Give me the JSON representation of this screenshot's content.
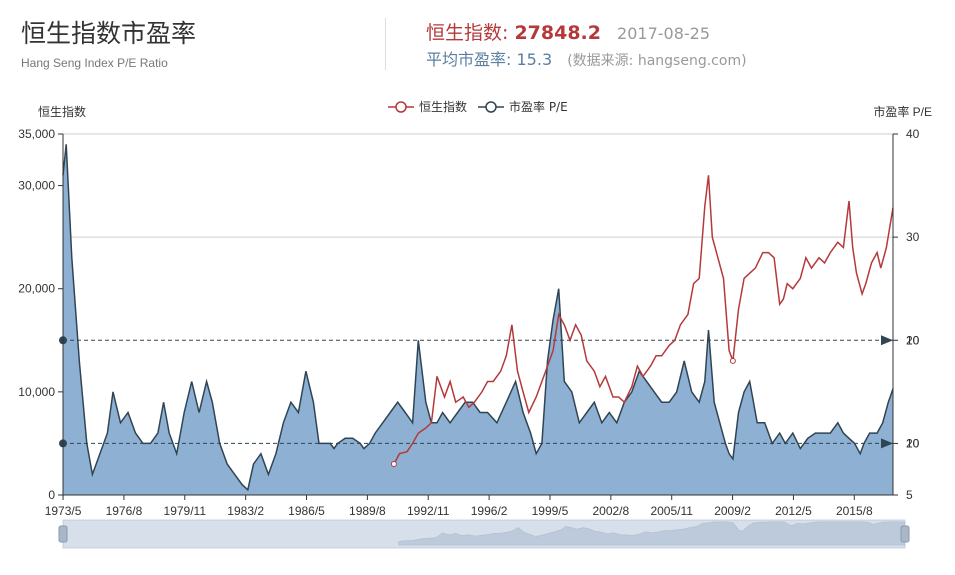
{
  "header": {
    "title": "恒生指数市盈率",
    "subtitle": "Hang Seng Index P/E Ratio",
    "index_label": "恒生指数:",
    "index_value": "27848.2",
    "date": "2017-08-25",
    "pe_label": "平均市盈率:",
    "pe_value": "15.3",
    "source": "(数据来源: hangseng.com)"
  },
  "colors": {
    "index": "#b5393b",
    "pe": "#2f4554",
    "pe_fill": "#8eb0d3"
  },
  "chart_data": {
    "type": "line",
    "left_axis": {
      "label": "恒生指数",
      "ticks": [
        "0",
        "10,000",
        "20,000",
        "30,000",
        "35,000"
      ],
      "ylim": [
        0,
        35000
      ]
    },
    "right_axis": {
      "label": "市盈率 P/E",
      "ticks": [
        "5",
        "10",
        "20",
        "30",
        "40"
      ],
      "ylim": [
        5,
        40
      ]
    },
    "x_ticks": [
      "1973/5",
      "1976/8",
      "1979/11",
      "1983/2",
      "1986/5",
      "1989/8",
      "1992/11",
      "1996/2",
      "1999/5",
      "2002/8",
      "2005/11",
      "2009/2",
      "2012/5",
      "2015/8"
    ],
    "xlim": [
      1973.33,
      2017.65
    ],
    "legend": [
      "恒生指数",
      "市盈率 P/E"
    ],
    "markers": [
      "20",
      "10"
    ],
    "reference_lines_pe": [
      10,
      20
    ],
    "series": [
      {
        "name": "恒生指数",
        "x": [
          1991.0,
          1991.3,
          1991.7,
          1992.0,
          1992.3,
          1992.7,
          1993.0,
          1993.3,
          1993.7,
          1994.0,
          1994.3,
          1994.7,
          1995.0,
          1995.3,
          1995.7,
          1996.0,
          1996.3,
          1996.7,
          1997.0,
          1997.3,
          1997.6,
          1997.9,
          1998.2,
          1998.6,
          1998.9,
          1999.2,
          1999.5,
          1999.8,
          2000.1,
          2000.4,
          2000.7,
          2001.0,
          2001.3,
          2001.7,
          2002.0,
          2002.3,
          2002.7,
          2003.0,
          2003.3,
          2003.7,
          2004.0,
          2004.3,
          2004.7,
          2005.0,
          2005.3,
          2005.7,
          2006.0,
          2006.3,
          2006.7,
          2007.0,
          2007.3,
          2007.6,
          2007.8,
          2008.0,
          2008.3,
          2008.6,
          2008.9,
          2009.1,
          2009.4,
          2009.7,
          2010.0,
          2010.3,
          2010.7,
          2011.0,
          2011.3,
          2011.6,
          2011.8,
          2012.0,
          2012.3,
          2012.7,
          2013.0,
          2013.3,
          2013.7,
          2014.0,
          2014.3,
          2014.7,
          2015.0,
          2015.3,
          2015.5,
          2015.7,
          2016.0,
          2016.2,
          2016.5,
          2016.8,
          2017.0,
          2017.3,
          2017.65
        ],
        "values": [
          3000,
          4000,
          4200,
          5000,
          6000,
          6500,
          7000,
          11500,
          9500,
          11000,
          9000,
          9500,
          8500,
          9000,
          10000,
          11000,
          11000,
          12000,
          13500,
          16500,
          12000,
          10000,
          8000,
          9500,
          11000,
          12500,
          14000,
          17500,
          16500,
          15000,
          16500,
          15500,
          13000,
          12000,
          10500,
          11500,
          9500,
          9500,
          9000,
          10500,
          12500,
          11500,
          12500,
          13500,
          13500,
          14500,
          15000,
          16500,
          17500,
          20500,
          21000,
          28000,
          31000,
          25000,
          23000,
          21000,
          14000,
          13000,
          18000,
          21000,
          21500,
          22000,
          23500,
          23500,
          23000,
          18500,
          19000,
          20500,
          20000,
          21000,
          23000,
          22000,
          23000,
          22500,
          23500,
          24500,
          24000,
          28500,
          24000,
          21500,
          19500,
          20500,
          22500,
          23500,
          22000,
          24000,
          27848
        ]
      },
      {
        "name": "市盈率 P/E",
        "x": [
          1973.33,
          1973.5,
          1973.8,
          1974.2,
          1974.6,
          1974.9,
          1975.3,
          1975.7,
          1976.0,
          1976.4,
          1976.8,
          1977.2,
          1977.6,
          1978.0,
          1978.4,
          1978.7,
          1979.0,
          1979.4,
          1979.8,
          1980.2,
          1980.6,
          1981.0,
          1981.3,
          1981.7,
          1982.1,
          1982.5,
          1982.9,
          1983.2,
          1983.5,
          1983.9,
          1984.3,
          1984.7,
          1985.1,
          1985.5,
          1985.9,
          1986.3,
          1986.7,
          1987.0,
          1987.3,
          1987.6,
          1987.8,
          1988.0,
          1988.4,
          1988.8,
          1989.2,
          1989.4,
          1989.7,
          1990.0,
          1990.4,
          1990.8,
          1991.2,
          1991.6,
          1992.0,
          1992.3,
          1992.7,
          1993.0,
          1993.3,
          1993.6,
          1994.0,
          1994.4,
          1994.8,
          1995.2,
          1995.6,
          1996.0,
          1996.5,
          1997.0,
          1997.5,
          1997.9,
          1998.3,
          1998.6,
          1998.9,
          1999.2,
          1999.5,
          1999.8,
          2000.1,
          2000.5,
          2000.9,
          2001.3,
          2001.7,
          2002.1,
          2002.5,
          2002.9,
          2003.3,
          2003.7,
          2004.1,
          2004.5,
          2004.9,
          2005.3,
          2005.7,
          2006.1,
          2006.5,
          2006.9,
          2007.3,
          2007.6,
          2007.8,
          2008.1,
          2008.4,
          2008.7,
          2008.9,
          2009.1,
          2009.4,
          2009.7,
          2010.0,
          2010.4,
          2010.8,
          2011.2,
          2011.6,
          2011.9,
          2012.3,
          2012.7,
          2013.1,
          2013.5,
          2013.9,
          2014.3,
          2014.7,
          2015.0,
          2015.3,
          2015.6,
          2015.9,
          2016.1,
          2016.4,
          2016.8,
          2017.1,
          2017.4,
          2017.65
        ],
        "values": [
          36,
          39,
          28,
          18,
          10,
          7,
          9,
          11,
          15,
          12,
          13,
          11,
          10,
          10,
          11,
          14,
          11,
          9,
          13,
          16,
          13,
          16,
          14,
          10,
          8,
          7,
          6,
          5.5,
          8,
          9,
          7,
          9,
          12,
          14,
          13,
          17,
          14,
          10,
          10,
          10,
          9.5,
          10,
          10.5,
          10.5,
          10,
          9.5,
          10,
          11,
          12,
          13,
          14,
          13,
          12,
          20,
          14,
          12,
          12,
          13,
          12,
          13,
          14,
          14,
          13,
          13,
          12,
          14,
          16,
          13,
          11,
          9,
          10,
          18,
          22,
          25,
          16,
          15,
          12,
          13,
          14,
          12,
          13,
          12,
          14,
          15,
          17,
          16,
          15,
          14,
          14,
          15,
          18,
          15,
          14,
          16,
          21,
          14,
          12,
          10,
          9,
          8.5,
          13,
          15,
          16,
          12,
          12,
          10,
          11,
          10,
          11,
          9.5,
          10.5,
          11,
          11,
          11,
          12,
          11,
          10.5,
          10,
          9,
          10,
          11,
          11,
          12,
          14,
          15.3
        ]
      }
    ]
  }
}
